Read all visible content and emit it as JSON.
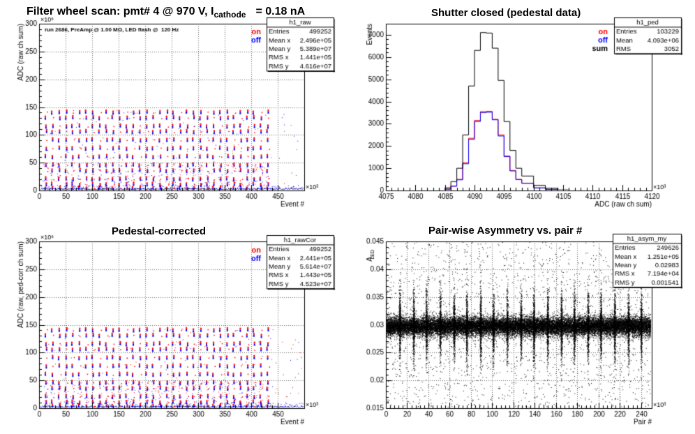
{
  "figure_title": {
    "prefix": "Filter wheel scan: pmt#   4 @   970 V, I",
    "subscript": "cathode",
    "suffix": "= 0.18 nA"
  },
  "colors": {
    "on": "#ff0000",
    "off": "#0000ff",
    "sum": "#000000",
    "frame": "#000000",
    "grid": "#000000"
  },
  "panels": {
    "raw": {
      "title": "",
      "annotation": "run 2686, PreAmp @ 1.00 MΩ, LED flash @  120 Hz",
      "legend": [
        "on",
        "off"
      ],
      "stats": {
        "name": "h1_raw",
        "rows": [
          [
            "Entries",
            "499252"
          ],
          [
            "Mean x",
            "2.496e+05"
          ],
          [
            "Mean y",
            "5.389e+07"
          ],
          [
            "RMS x",
            "1.441e+05"
          ],
          [
            "RMS y",
            "4.616e+07"
          ]
        ]
      }
    },
    "ped": {
      "title": "Shutter closed (pedestal data)",
      "legend": [
        "on",
        "off",
        "sum"
      ],
      "stats": {
        "name": "h1_ped",
        "rows": [
          [
            "Entries",
            "103229"
          ],
          [
            "Mean",
            "4.093e+06"
          ],
          [
            "RMS",
            "3052"
          ]
        ]
      }
    },
    "rawcor": {
      "title": "Pedestal-corrected",
      "legend": [
        "on",
        "off"
      ],
      "stats": {
        "name": "h1_rawCor",
        "rows": [
          [
            "Entries",
            "499252"
          ],
          [
            "Mean x",
            "2.441e+05"
          ],
          [
            "Mean y",
            "5.614e+07"
          ],
          [
            "RMS x",
            "1.443e+05"
          ],
          [
            "RMS y",
            "4.523e+07"
          ]
        ]
      }
    },
    "asym": {
      "title": "Pair-wise Asymmetry vs. pair #",
      "stats": {
        "name": "h1_asym_my",
        "rows": [
          [
            "Entries",
            "249626"
          ],
          [
            "Mean x",
            "1.251e+05"
          ],
          [
            "Mean y",
            "0.02983"
          ],
          [
            "RMS x",
            "7.194e+04"
          ],
          [
            "RMS y",
            "0.001541"
          ]
        ]
      }
    }
  },
  "chart_data": [
    {
      "id": "raw",
      "type": "scatter",
      "xlabel": "Event #",
      "ylabel": "ADC (raw ch sum)",
      "x_exponent": "×10³",
      "y_exponent": "×10⁶",
      "xlim": [
        0,
        500
      ],
      "ylim": [
        0,
        300
      ],
      "xticks": [
        0,
        50,
        100,
        150,
        200,
        250,
        300,
        350,
        400,
        450
      ],
      "yticks": [
        0,
        50,
        100,
        150,
        200,
        250,
        300
      ],
      "grid": true,
      "band_levels": [
        3,
        10,
        20,
        35,
        45,
        60,
        75,
        90,
        105,
        115,
        130,
        140
      ],
      "flash_columns_x": [
        13,
        25,
        38,
        51,
        63,
        76,
        89,
        101,
        114,
        127,
        139,
        152,
        165,
        177,
        190,
        203,
        215,
        228,
        241,
        253,
        266,
        279,
        291,
        304,
        317,
        329,
        342,
        355,
        367,
        380,
        393,
        405,
        418,
        431
      ],
      "series": [
        {
          "name": "on",
          "color": "#ff0000"
        },
        {
          "name": "off",
          "color": "#0000ff"
        }
      ]
    },
    {
      "id": "ped",
      "type": "line",
      "xlabel": "ADC (raw ch sum)",
      "ylabel": "Events",
      "x_exponent": "×10³",
      "xlim": [
        4075,
        4120
      ],
      "ylim": [
        0,
        7500
      ],
      "xticks": [
        4075,
        4080,
        4085,
        4090,
        4095,
        4100,
        4105,
        4110,
        4115,
        4120
      ],
      "yticks": [
        0,
        1000,
        2000,
        3000,
        4000,
        5000,
        6000,
        7000
      ],
      "grid": false,
      "x": [
        4075,
        4081,
        4083,
        4085,
        4086,
        4087,
        4088,
        4089,
        4090,
        4091,
        4092,
        4093,
        4094,
        4095,
        4096,
        4097,
        4098,
        4100,
        4102,
        4104,
        4106,
        4110,
        4120
      ],
      "series": [
        {
          "name": "on",
          "color": "#ff0000",
          "values": [
            0,
            0,
            5,
            60,
            200,
            500,
            1250,
            2350,
            3150,
            3550,
            3560,
            3200,
            2500,
            1550,
            900,
            500,
            330,
            120,
            50,
            15,
            5,
            0,
            0
          ]
        },
        {
          "name": "off",
          "color": "#0000ff",
          "values": [
            0,
            0,
            5,
            55,
            190,
            480,
            1200,
            2300,
            3100,
            3500,
            3520,
            3180,
            2450,
            1520,
            880,
            490,
            320,
            115,
            48,
            14,
            5,
            0,
            0
          ]
        },
        {
          "name": "sum",
          "color": "#000000",
          "values": [
            0,
            0,
            10,
            120,
            400,
            1000,
            2500,
            4700,
            6300,
            7100,
            7080,
            6400,
            4950,
            3100,
            1800,
            1000,
            650,
            230,
            100,
            30,
            10,
            0,
            0
          ]
        }
      ]
    },
    {
      "id": "rawcor",
      "type": "scatter",
      "xlabel": "Event #",
      "ylabel": "ADC (raw, ped-corr ch sum)",
      "x_exponent": "×10³",
      "y_exponent": "×10⁶",
      "xlim": [
        0,
        500
      ],
      "ylim": [
        0,
        300
      ],
      "xticks": [
        0,
        50,
        100,
        150,
        200,
        250,
        300,
        350,
        400,
        450
      ],
      "yticks": [
        0,
        50,
        100,
        150,
        200,
        250,
        300
      ],
      "grid": true,
      "band_levels": [
        3,
        10,
        20,
        35,
        45,
        60,
        75,
        90,
        105,
        115,
        130,
        140
      ],
      "flash_columns_x": [
        13,
        25,
        38,
        51,
        63,
        76,
        89,
        101,
        114,
        127,
        139,
        152,
        165,
        177,
        190,
        203,
        215,
        228,
        241,
        253,
        266,
        279,
        291,
        304,
        317,
        329,
        342,
        355,
        367,
        380,
        393,
        405,
        418,
        431
      ],
      "series": [
        {
          "name": "on",
          "color": "#ff0000"
        },
        {
          "name": "off",
          "color": "#0000ff"
        }
      ]
    },
    {
      "id": "asym",
      "type": "scatter",
      "xlabel": "Pair #",
      "ylabel": "A_LED",
      "x_exponent": "×10³",
      "xlim": [
        0,
        250
      ],
      "ylim": [
        0.015,
        0.045
      ],
      "xticks": [
        0,
        20,
        40,
        60,
        80,
        100,
        120,
        140,
        160,
        180,
        200,
        220,
        240
      ],
      "yticks": [
        0.015,
        0.02,
        0.025,
        0.03,
        0.035,
        0.04,
        0.045
      ],
      "grid": true,
      "center_level": 0.0298,
      "spike_x": [
        13,
        26,
        38,
        51,
        64,
        76,
        89,
        101,
        114,
        127,
        139,
        152,
        165,
        177,
        190,
        202,
        215,
        228,
        240
      ],
      "series": [
        {
          "name": "",
          "color": "#000000"
        }
      ]
    }
  ]
}
